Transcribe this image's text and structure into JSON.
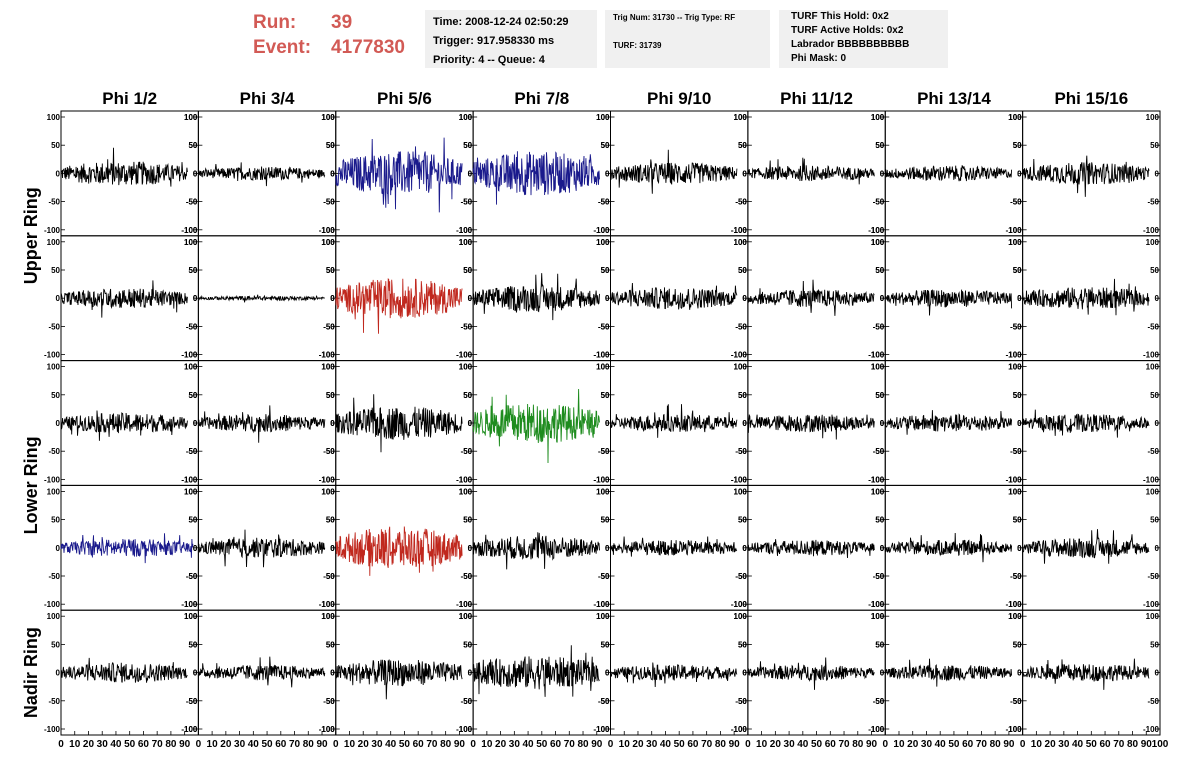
{
  "header": {
    "run_label": "Run:",
    "run_value": "39",
    "event_label": "Event:",
    "event_value": "4177830",
    "time": "Time: 2008-12-24 02:50:29",
    "trigger": "Trigger: 917.958330 ms",
    "priority": "Priority: 4 -- Queue: 4",
    "trig_num": "Trig Num: 31730 -- Trig Type: RF",
    "turf": "TURF: 31739",
    "turf_this_hold": "TURF This Hold: 0x2",
    "turf_active_holds": "TURF Active Holds: 0x2",
    "labrador": "Labrador BBBBBBBBBB",
    "phi_mask": "Phi Mask: 0"
  },
  "colors": {
    "header_red": "#d25a55",
    "trace_black": "#000000",
    "trace_blue": "#1a1a8c",
    "trace_red": "#c0281e",
    "trace_green": "#1e8c1e"
  },
  "chart_data": {
    "type": "line",
    "columns": [
      "Phi 1/2",
      "Phi 3/4",
      "Phi 5/6",
      "Phi 7/8",
      "Phi 9/10",
      "Phi 11/12",
      "Phi 13/14",
      "Phi 15/16"
    ],
    "row_labels": [
      "Upper Ring",
      "Lower Ring",
      "Nadir Ring"
    ],
    "xlim": [
      0,
      100
    ],
    "ylim": [
      -100,
      100
    ],
    "yticks": [
      -100,
      -50,
      0,
      50,
      100
    ],
    "xticks": [
      0,
      10,
      20,
      30,
      40,
      50,
      60,
      70,
      80,
      90,
      100
    ],
    "trace_colors": [
      [
        "black",
        "black",
        "blue",
        "blue",
        "black",
        "black",
        "black",
        "black"
      ],
      [
        "black",
        "black",
        "red",
        "black",
        "black",
        "black",
        "black",
        "black"
      ],
      [
        "black",
        "black",
        "black",
        "green",
        "black",
        "black",
        "black",
        "black"
      ],
      [
        "blue",
        "black",
        "red",
        "black",
        "black",
        "black",
        "black",
        "black"
      ],
      [
        "black",
        "black",
        "black",
        "black",
        "black",
        "black",
        "black",
        "black"
      ]
    ],
    "trace_amplitude": [
      [
        22,
        12,
        40,
        40,
        20,
        14,
        14,
        20
      ],
      [
        18,
        4,
        36,
        24,
        20,
        16,
        16,
        20
      ],
      [
        18,
        16,
        30,
        36,
        16,
        16,
        16,
        16
      ],
      [
        16,
        18,
        38,
        22,
        14,
        14,
        14,
        18
      ],
      [
        18,
        14,
        24,
        30,
        14,
        14,
        14,
        16
      ]
    ],
    "trace_duration": [
      [
        92,
        92,
        92,
        92,
        92,
        92,
        92,
        92
      ],
      [
        92,
        92,
        92,
        92,
        92,
        92,
        92,
        92
      ],
      [
        92,
        92,
        92,
        92,
        92,
        92,
        92,
        92
      ],
      [
        96,
        92,
        92,
        92,
        92,
        92,
        92,
        92
      ],
      [
        92,
        92,
        92,
        92,
        92,
        92,
        92,
        92
      ]
    ]
  }
}
